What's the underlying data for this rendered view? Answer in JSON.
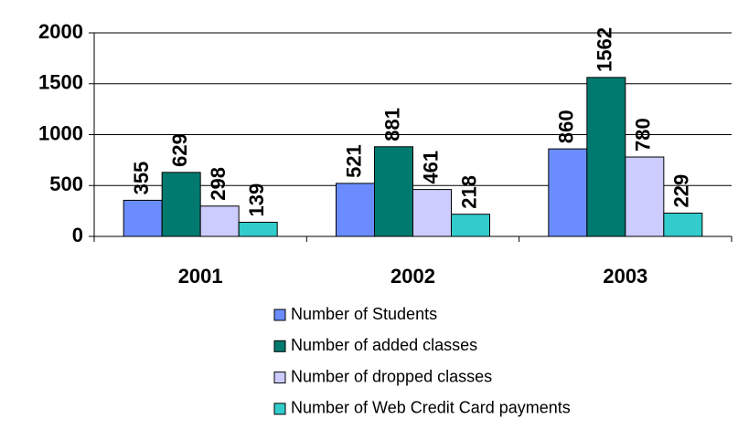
{
  "chart_data": {
    "type": "bar",
    "categories": [
      "2001",
      "2002",
      "2003"
    ],
    "series": [
      {
        "name": "Number of Students",
        "color": "#6b8cff",
        "values": [
          355,
          521,
          860
        ]
      },
      {
        "name": "Number of added classes",
        "color": "#007a6e",
        "values": [
          629,
          881,
          1562
        ]
      },
      {
        "name": "Number of dropped classes",
        "color": "#ccccff",
        "values": [
          298,
          461,
          780
        ]
      },
      {
        "name": "Number of Web Credit Card payments",
        "color": "#33cccc",
        "values": [
          139,
          218,
          229
        ]
      }
    ],
    "ylim": [
      0,
      2000
    ],
    "yticks": [
      0,
      500,
      1000,
      1500,
      2000
    ],
    "grid": true,
    "legend": "bottom"
  }
}
